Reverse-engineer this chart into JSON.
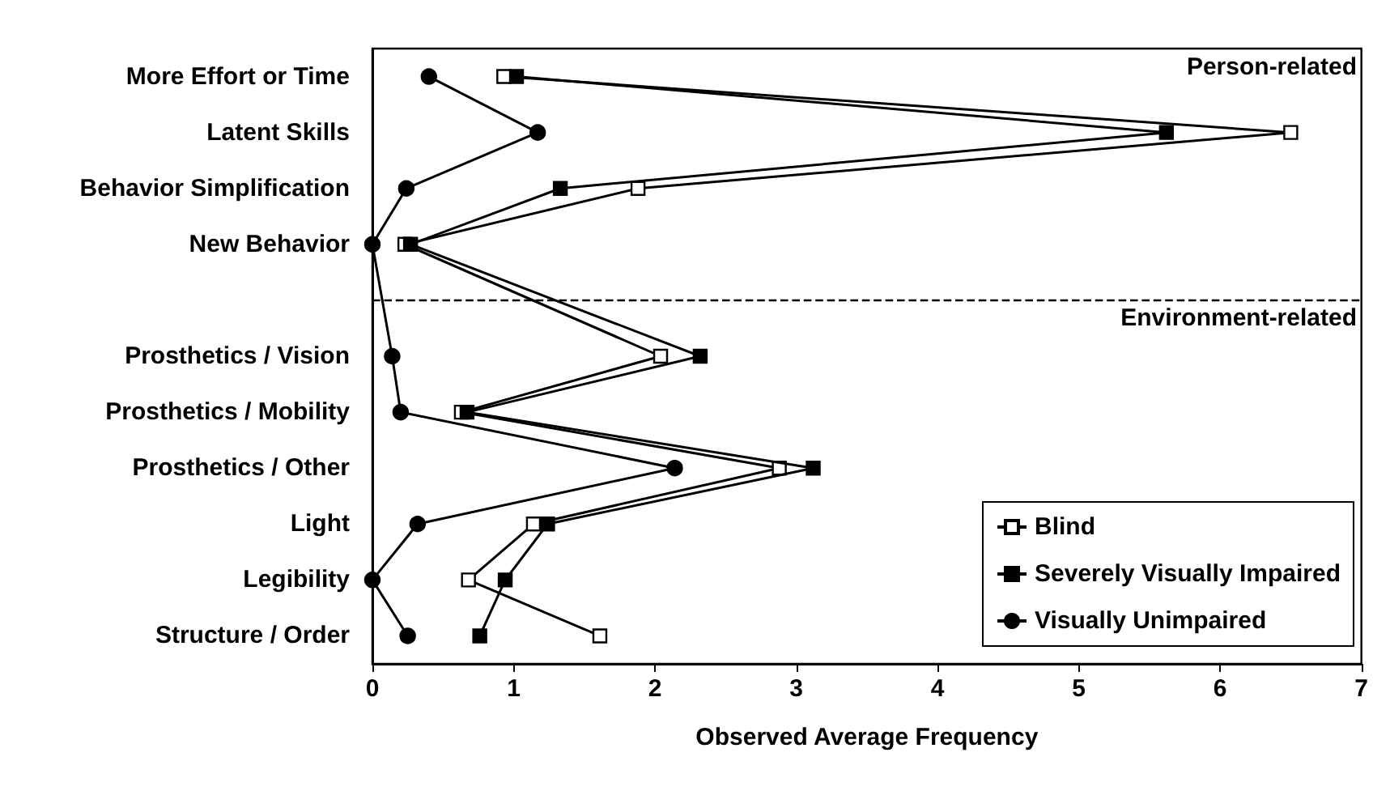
{
  "chart_data": {
    "type": "line",
    "xlabel": "Observed Average Frequency",
    "categories": [
      "More Effort or Time",
      "Latent Skills",
      "Behavior Simplification",
      "New Behavior",
      null,
      "Prosthetics / Vision",
      "Prosthetics / Mobility",
      "Prosthetics / Other",
      "Light",
      "Legibility",
      "Structure / Order"
    ],
    "orientation": "horizontal",
    "series": [
      {
        "name": "Blind",
        "color": "#ffffff",
        "marker": "square",
        "values": [
          0.93,
          6.5,
          1.88,
          0.23,
          null,
          2.04,
          0.63,
          2.88,
          1.14,
          0.68,
          1.61
        ]
      },
      {
        "name": "Severely Visually Impaired",
        "color": "#000000",
        "marker": "square",
        "values": [
          1.02,
          5.62,
          1.33,
          0.27,
          null,
          2.32,
          0.67,
          3.12,
          1.24,
          0.94,
          0.76
        ]
      },
      {
        "name": "Visually Unimpaired",
        "color": "#000000",
        "marker": "circle",
        "values": [
          0.4,
          1.17,
          0.24,
          0,
          null,
          0.14,
          0.2,
          2.14,
          0.32,
          0,
          0.25
        ]
      }
    ],
    "xlim": [
      0,
      7
    ],
    "xticks": [
      0,
      1,
      2,
      3,
      4,
      5,
      6,
      7
    ],
    "ref_lines": [
      {
        "axis": "y",
        "value": null,
        "line_style": "dashed",
        "color": "#000000"
      }
    ],
    "annotations": [
      "Person-related",
      "Environment-related"
    ],
    "legend": "bottom right",
    "line_style": "solid"
  }
}
